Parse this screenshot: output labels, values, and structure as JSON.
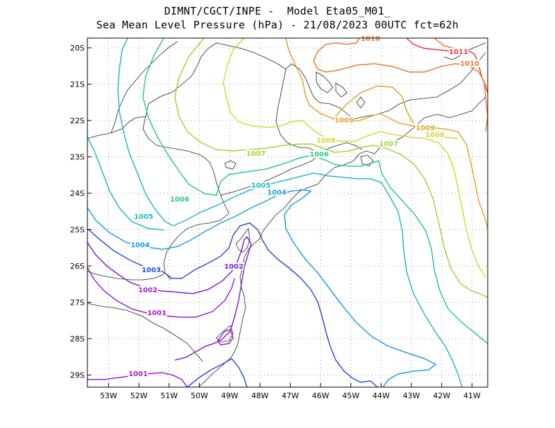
{
  "title_line1": "DIMNT/CGCT/INPE -  Model Eta05_M01_",
  "title_line2": "Sea Mean Level Pressure (hPa) - 21/08/2023 00UTC fct=62h",
  "lon_labels": [
    "53W",
    "52W",
    "51W",
    "50W",
    "49W",
    "48W",
    "47W",
    "46W",
    "45W",
    "44W",
    "43W",
    "42W",
    "41W"
  ],
  "lat_labels": [
    "20S",
    "21S",
    "22S",
    "23S",
    "24S",
    "25S",
    "26S",
    "27S",
    "28S",
    "29S"
  ],
  "contour_labels": [
    {
      "text": "1011",
      "color": "#e8373f"
    },
    {
      "text": "1010",
      "color": "#f0782d"
    },
    {
      "text": "1010",
      "color": "#f0782d"
    },
    {
      "text": "1009",
      "color": "#e6a128"
    },
    {
      "text": "1009",
      "color": "#e6a128"
    },
    {
      "text": "1008",
      "color": "#d9d634"
    },
    {
      "text": "1008",
      "color": "#d9d634"
    },
    {
      "text": "1007",
      "color": "#9bd63a"
    },
    {
      "text": "1007",
      "color": "#9bd63a"
    },
    {
      "text": "1006",
      "color": "#2dc98c"
    },
    {
      "text": "1006",
      "color": "#2dc98c"
    },
    {
      "text": "1005",
      "color": "#22b9c6"
    },
    {
      "text": "1005",
      "color": "#22b9c6"
    },
    {
      "text": "1004",
      "color": "#1e9ee3"
    },
    {
      "text": "1004",
      "color": "#1e9ee3"
    },
    {
      "text": "1003",
      "color": "#2a4fd8"
    },
    {
      "text": "1002",
      "color": "#7b22d0"
    },
    {
      "text": "1002",
      "color": "#a020c8"
    },
    {
      "text": "1001",
      "color": "#a020c8"
    },
    {
      "text": "1001",
      "color": "#a020c8"
    }
  ]
}
